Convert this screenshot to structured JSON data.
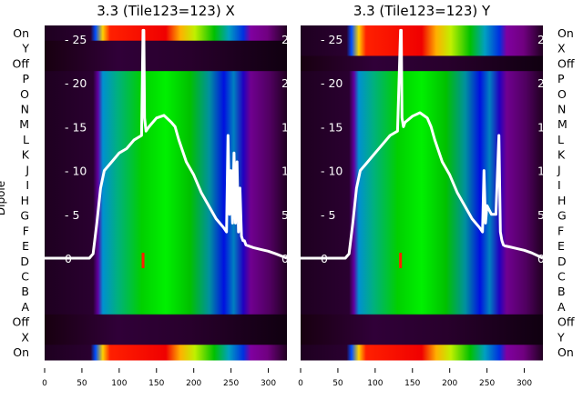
{
  "chart_data": [
    {
      "type": "heatmap",
      "title": "3.3 (Tile123=123) X",
      "ylabel": "Dipole",
      "row_labels": [
        "On",
        "Y",
        "Off",
        "P",
        "O",
        "N",
        "M",
        "L",
        "K",
        "J",
        "I",
        "H",
        "G",
        "F",
        "E",
        "D",
        "C",
        "B",
        "A",
        "Off",
        "X",
        "On"
      ],
      "row_kinds": [
        "on",
        "off",
        "off",
        "d",
        "d",
        "d",
        "d",
        "d",
        "d",
        "d",
        "d",
        "d",
        "d",
        "d",
        "d",
        "d",
        "d",
        "d",
        "d",
        "off",
        "off",
        "on"
      ],
      "xlim": [
        0,
        325
      ],
      "xticks": [
        0,
        50,
        100,
        150,
        200,
        250,
        300
      ],
      "ylim": [
        -4.2,
        26
      ],
      "yticks": [
        0,
        5,
        10,
        15,
        20,
        25
      ],
      "line": {
        "x": [
          0,
          60,
          65,
          70,
          75,
          80,
          90,
          100,
          110,
          120,
          130,
          132,
          133,
          134,
          136,
          140,
          150,
          160,
          170,
          175,
          180,
          190,
          200,
          210,
          220,
          230,
          240,
          244,
          246,
          248,
          250,
          252,
          254,
          256,
          258,
          260,
          262,
          264,
          266,
          268,
          270,
          280,
          290,
          300,
          310,
          325
        ],
        "y": [
          0,
          0,
          0.5,
          4,
          8,
          10,
          11,
          12,
          12.5,
          13.5,
          14,
          26,
          26,
          16,
          14.5,
          15,
          16,
          16.3,
          15.5,
          15,
          13.5,
          11,
          9.5,
          7.5,
          6,
          4.5,
          3.5,
          3,
          14,
          5,
          10,
          4,
          12,
          4,
          11,
          3,
          8,
          2.5,
          2,
          2,
          1.5,
          1.2,
          1,
          0.8,
          0.5,
          0
        ]
      }
    },
    {
      "type": "heatmap",
      "title": "3.3 (Tile123=123) Y",
      "row_labels": [
        "On",
        "X",
        "Off",
        "P",
        "O",
        "N",
        "M",
        "L",
        "K",
        "J",
        "I",
        "H",
        "G",
        "F",
        "E",
        "D",
        "C",
        "B",
        "A",
        "Off",
        "Y",
        "On"
      ],
      "row_kinds": [
        "on",
        "on",
        "off",
        "d",
        "d",
        "d",
        "d",
        "d",
        "d",
        "d",
        "d",
        "d",
        "d",
        "d",
        "d",
        "d",
        "d",
        "d",
        "d",
        "off",
        "off",
        "on"
      ],
      "xlim": [
        0,
        325
      ],
      "xticks": [
        0,
        50,
        100,
        150,
        200,
        250,
        300
      ],
      "ylim": [
        -4.2,
        26
      ],
      "yticks": [
        0,
        5,
        10,
        15,
        20,
        25
      ],
      "line": {
        "x": [
          0,
          60,
          65,
          70,
          75,
          80,
          90,
          100,
          110,
          120,
          130,
          134,
          135,
          136,
          138,
          140,
          150,
          160,
          170,
          175,
          180,
          190,
          200,
          210,
          220,
          230,
          240,
          244,
          246,
          248,
          250,
          256,
          262,
          266,
          268,
          270,
          272,
          274,
          280,
          290,
          300,
          310,
          325
        ],
        "y": [
          0,
          0,
          0.5,
          4,
          8,
          10,
          11,
          12,
          13,
          14,
          14.5,
          26,
          26,
          16,
          15,
          15.5,
          16.2,
          16.6,
          16,
          15,
          13.5,
          11,
          9.5,
          7.5,
          6,
          4.5,
          3.5,
          3,
          10,
          4,
          6,
          5,
          5,
          14,
          3,
          2,
          1.5,
          1.4,
          1.3,
          1.1,
          0.9,
          0.6,
          0
        ]
      }
    }
  ]
}
